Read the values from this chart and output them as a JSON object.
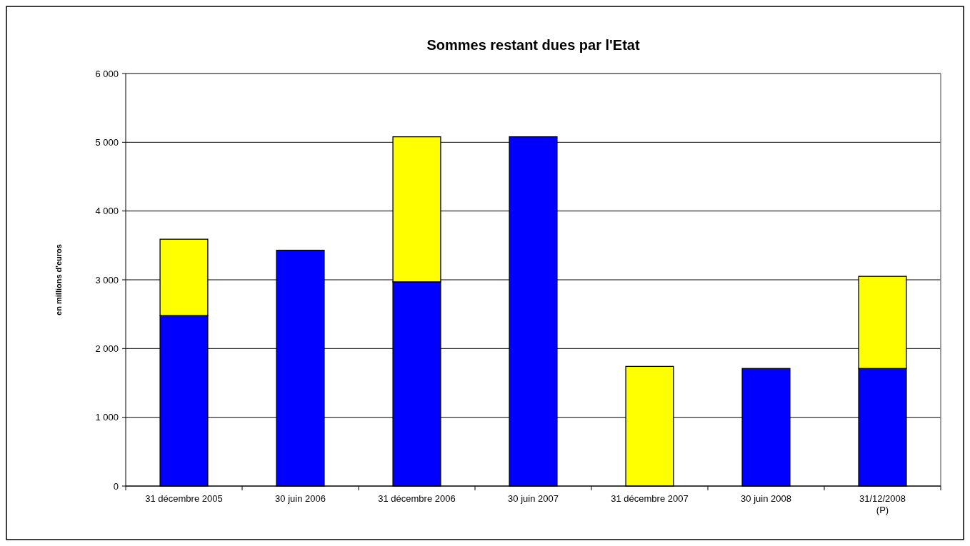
{
  "chart_data": {
    "type": "bar",
    "title": "Sommes restant dues par l'Etat",
    "ylabel": "en millions d'euros",
    "stacked": true,
    "categories": [
      "31 décembre 2005",
      "30 juin 2006",
      "31 décembre 2006",
      "30 juin 2007",
      "31 décembre 2007",
      "30 juin 2008",
      "31/12/2008\n(P)"
    ],
    "series": [
      {
        "color": "#0000ff",
        "values": [
          2480,
          3430,
          2970,
          5080,
          0,
          1710,
          1710
        ]
      },
      {
        "color": "#ffff00",
        "values": [
          1110,
          0,
          2110,
          0,
          1740,
          0,
          1340
        ]
      }
    ],
    "ylim": [
      0,
      6000
    ],
    "yticks": [
      {
        "value": 0,
        "label": "0"
      },
      {
        "value": 1000,
        "label": "1 000"
      },
      {
        "value": 2000,
        "label": "2 000"
      },
      {
        "value": 3000,
        "label": "3 000"
      },
      {
        "value": 4000,
        "label": "4 000"
      },
      {
        "value": 5000,
        "label": "5 000"
      },
      {
        "value": 6000,
        "label": "6 000"
      }
    ],
    "grid": "y"
  }
}
